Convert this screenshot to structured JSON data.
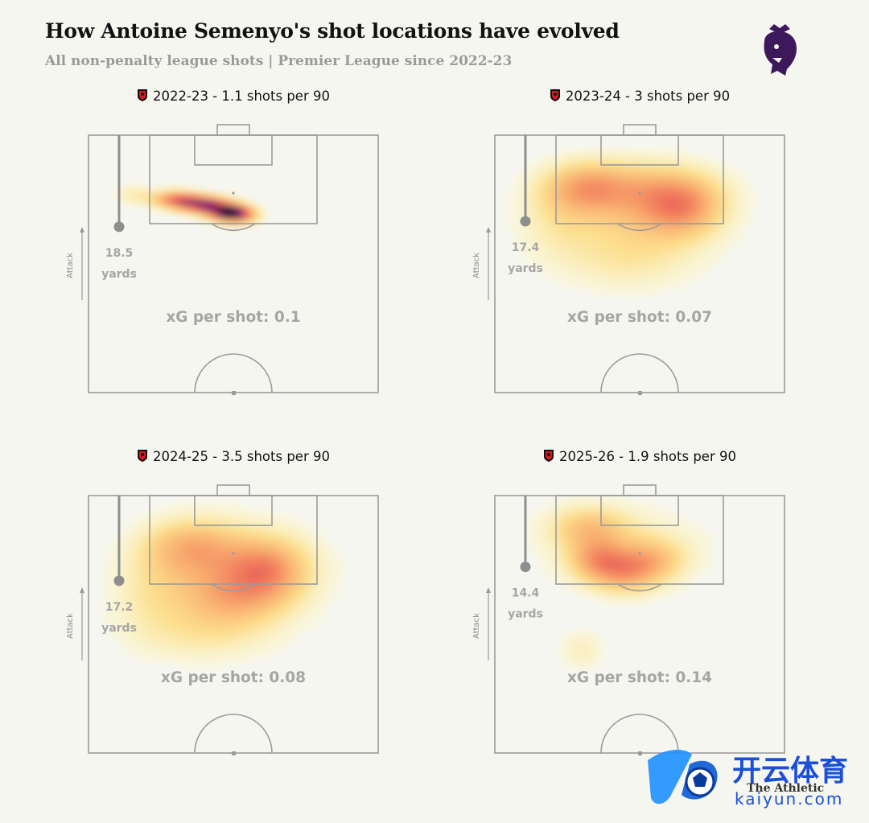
{
  "header": {
    "title": "How Antoine Semenyo's shot locations have evolved",
    "subtitle": "All non-penalty league shots | Premier League since 2022-23"
  },
  "credit": "The Athletic",
  "watermark": {
    "chinese": "开云体育",
    "latin": "kaiyun.com"
  },
  "colors": {
    "background": "#f6f6f1",
    "pitch_line": "#9b9b9b",
    "label_grey": "#a5a5a5",
    "pl_purple": "#3d195b",
    "crest_red": "#d71920"
  },
  "chart_data": [
    {
      "type": "heatmap",
      "title": "2022-23 - 1.1 shots per 90",
      "season": "2022-23",
      "shots_per_90": 1.1,
      "avg_shot_distance_yards": 18.5,
      "distance_label": "18.5",
      "distance_unit": "yards",
      "xg_per_shot": 0.1,
      "xg_label": "xG per shot: 0.1",
      "attack_label": "Attack",
      "hotspots": [
        {
          "x": 0.3,
          "y": 0.25,
          "sx": 0.06,
          "sy": 0.025,
          "w": 0.8
        },
        {
          "x": 0.4,
          "y": 0.27,
          "sx": 0.06,
          "sy": 0.025,
          "w": 1.0
        },
        {
          "x": 0.48,
          "y": 0.3,
          "sx": 0.05,
          "sy": 0.025,
          "w": 0.9
        },
        {
          "x": 0.52,
          "y": 0.31,
          "sx": 0.05,
          "sy": 0.025,
          "w": 0.7
        },
        {
          "x": 0.15,
          "y": 0.23,
          "sx": 0.05,
          "sy": 0.03,
          "w": 0.25
        }
      ]
    },
    {
      "type": "heatmap",
      "title": "2023-24 - 3 shots per 90",
      "season": "2023-24",
      "shots_per_90": 3,
      "avg_shot_distance_yards": 17.4,
      "distance_label": "17.4",
      "distance_unit": "yards",
      "xg_per_shot": 0.07,
      "xg_label": "xG per shot: 0.07",
      "attack_label": "Attack",
      "hotspots": [
        {
          "x": 0.48,
          "y": 0.2,
          "sx": 0.2,
          "sy": 0.08,
          "w": 0.45
        },
        {
          "x": 0.3,
          "y": 0.2,
          "sx": 0.1,
          "sy": 0.07,
          "w": 0.45
        },
        {
          "x": 0.65,
          "y": 0.28,
          "sx": 0.1,
          "sy": 0.08,
          "w": 0.6
        },
        {
          "x": 0.5,
          "y": 0.32,
          "sx": 0.2,
          "sy": 0.12,
          "w": 0.4
        },
        {
          "x": 0.45,
          "y": 0.5,
          "sx": 0.18,
          "sy": 0.09,
          "w": 0.25
        },
        {
          "x": 0.2,
          "y": 0.35,
          "sx": 0.1,
          "sy": 0.1,
          "w": 0.2
        }
      ]
    },
    {
      "type": "heatmap",
      "title": "2024-25 - 3.5 shots per 90",
      "season": "2024-25",
      "shots_per_90": 3.5,
      "avg_shot_distance_yards": 17.2,
      "distance_label": "17.2",
      "distance_unit": "yards",
      "xg_per_shot": 0.08,
      "xg_label": "xG per shot: 0.08",
      "attack_label": "Attack",
      "hotspots": [
        {
          "x": 0.35,
          "y": 0.2,
          "sx": 0.12,
          "sy": 0.08,
          "w": 0.5
        },
        {
          "x": 0.62,
          "y": 0.28,
          "sx": 0.1,
          "sy": 0.08,
          "w": 0.55
        },
        {
          "x": 0.5,
          "y": 0.4,
          "sx": 0.14,
          "sy": 0.08,
          "w": 0.45
        },
        {
          "x": 0.5,
          "y": 0.28,
          "sx": 0.22,
          "sy": 0.14,
          "w": 0.35
        },
        {
          "x": 0.4,
          "y": 0.55,
          "sx": 0.18,
          "sy": 0.08,
          "w": 0.25
        },
        {
          "x": 0.2,
          "y": 0.4,
          "sx": 0.1,
          "sy": 0.12,
          "w": 0.2
        }
      ]
    },
    {
      "type": "heatmap",
      "title": "2025-26 - 1.9 shots per 90",
      "season": "2025-26",
      "shots_per_90": 1.9,
      "avg_shot_distance_yards": 14.4,
      "distance_label": "14.4",
      "distance_unit": "yards",
      "xg_per_shot": 0.14,
      "xg_label": "xG per shot: 0.14",
      "attack_label": "Attack",
      "hotspots": [
        {
          "x": 0.32,
          "y": 0.12,
          "sx": 0.1,
          "sy": 0.06,
          "w": 0.5
        },
        {
          "x": 0.35,
          "y": 0.25,
          "sx": 0.07,
          "sy": 0.06,
          "w": 0.6
        },
        {
          "x": 0.45,
          "y": 0.3,
          "sx": 0.08,
          "sy": 0.06,
          "w": 0.6
        },
        {
          "x": 0.55,
          "y": 0.25,
          "sx": 0.08,
          "sy": 0.06,
          "w": 0.45
        },
        {
          "x": 0.45,
          "y": 0.2,
          "sx": 0.22,
          "sy": 0.12,
          "w": 0.3
        },
        {
          "x": 0.3,
          "y": 0.6,
          "sx": 0.06,
          "sy": 0.06,
          "w": 0.3
        }
      ]
    }
  ]
}
